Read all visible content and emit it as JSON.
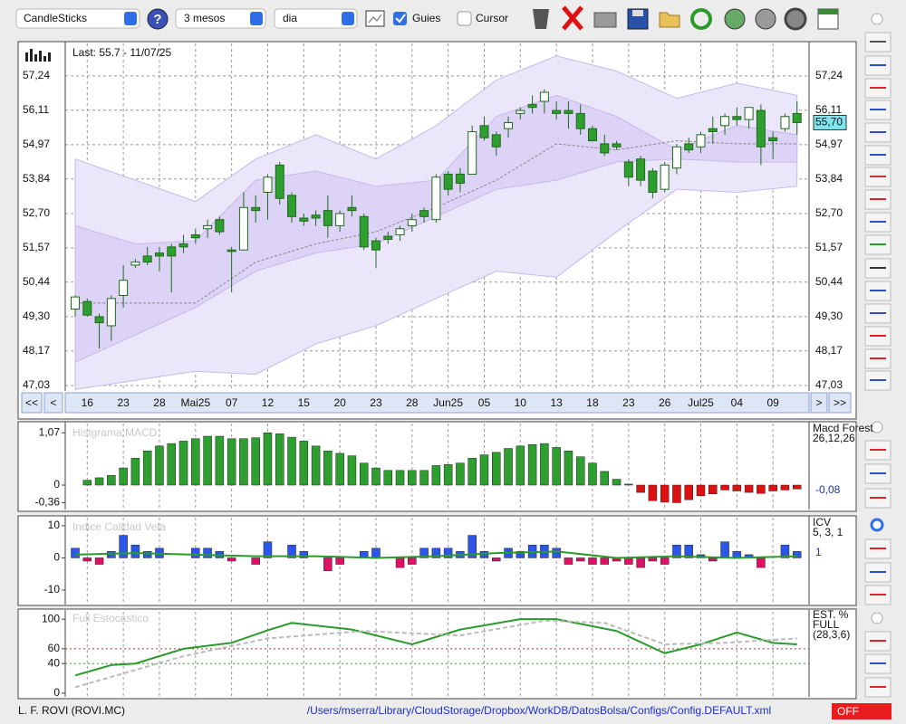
{
  "toolbar": {
    "chart_type": "CandleSticks",
    "period": "3 mesos",
    "interval": "dia",
    "guides": {
      "label": "Guies",
      "checked": true
    },
    "cursor": {
      "label": "Cursor",
      "checked": false
    }
  },
  "navigation": {
    "first": "<<",
    "prev": "<",
    "next": ">",
    "last": ">>"
  },
  "chart_data": [
    {
      "type": "candlestick",
      "title": "Last: 55.7 - 11/07/25",
      "up_color": "#ffffff",
      "down_color": "#2e9e2e",
      "ohlc": [
        [
          49.55,
          50.0,
          49.3,
          49.95
        ],
        [
          49.8,
          49.9,
          49.3,
          49.35
        ],
        [
          49.3,
          49.4,
          48.25,
          49.1
        ],
        [
          49.0,
          50.0,
          48.5,
          49.9
        ],
        [
          50.0,
          51.0,
          49.6,
          50.5
        ],
        [
          51.0,
          51.2,
          50.9,
          51.1
        ],
        [
          51.3,
          51.6,
          51.0,
          51.1
        ],
        [
          51.4,
          51.6,
          50.8,
          51.3
        ],
        [
          51.6,
          51.7,
          50.1,
          51.3
        ],
        [
          51.7,
          52.0,
          51.4,
          51.6
        ],
        [
          52.0,
          52.2,
          51.7,
          51.9
        ],
        [
          52.2,
          52.5,
          51.9,
          52.3
        ],
        [
          52.5,
          52.6,
          52.0,
          52.1
        ],
        [
          51.5,
          51.6,
          50.1,
          51.45
        ],
        [
          51.5,
          53.4,
          51.5,
          52.9
        ],
        [
          52.9,
          53.3,
          52.4,
          52.8
        ],
        [
          53.4,
          54.0,
          52.5,
          53.9
        ],
        [
          54.3,
          54.4,
          53.0,
          53.2
        ],
        [
          53.3,
          53.4,
          52.4,
          52.6
        ],
        [
          52.55,
          52.7,
          52.3,
          52.45
        ],
        [
          52.65,
          52.8,
          52.3,
          52.55
        ],
        [
          52.8,
          53.3,
          51.9,
          52.3
        ],
        [
          52.3,
          52.8,
          52.1,
          52.7
        ],
        [
          52.9,
          53.3,
          52.6,
          52.8
        ],
        [
          52.6,
          52.7,
          51.5,
          51.6
        ],
        [
          51.8,
          51.9,
          50.9,
          51.5
        ],
        [
          51.95,
          52.1,
          51.7,
          51.85
        ],
        [
          52.0,
          52.3,
          51.8,
          52.2
        ],
        [
          52.3,
          52.7,
          52.1,
          52.5
        ],
        [
          52.8,
          52.9,
          52.4,
          52.6
        ],
        [
          52.5,
          54.0,
          52.4,
          53.9
        ],
        [
          54.0,
          54.1,
          53.3,
          53.5
        ],
        [
          54.0,
          54.2,
          53.4,
          53.7
        ],
        [
          54.0,
          55.6,
          54.0,
          55.4
        ],
        [
          55.6,
          55.9,
          55.1,
          55.2
        ],
        [
          55.3,
          55.4,
          54.6,
          54.9
        ],
        [
          55.5,
          55.9,
          55.2,
          55.7
        ],
        [
          56.0,
          56.2,
          55.8,
          56.1
        ],
        [
          56.3,
          56.6,
          56.0,
          56.2
        ],
        [
          56.4,
          56.8,
          56.0,
          56.7
        ],
        [
          56.1,
          56.4,
          55.8,
          56.0
        ],
        [
          56.1,
          56.4,
          55.5,
          56.0
        ],
        [
          56.0,
          56.3,
          55.3,
          55.5
        ],
        [
          55.5,
          55.6,
          55.1,
          55.1
        ],
        [
          55.0,
          55.3,
          54.6,
          54.7
        ],
        [
          55.0,
          55.1,
          54.8,
          54.9
        ],
        [
          54.4,
          54.5,
          53.6,
          53.9
        ],
        [
          54.5,
          54.6,
          53.6,
          53.8
        ],
        [
          54.1,
          54.2,
          53.2,
          53.4
        ],
        [
          53.5,
          54.4,
          53.4,
          54.3
        ],
        [
          54.2,
          55.0,
          54.0,
          54.9
        ],
        [
          55.0,
          55.2,
          54.7,
          54.8
        ],
        [
          54.9,
          55.4,
          54.7,
          55.3
        ],
        [
          55.5,
          55.9,
          55.0,
          55.4
        ],
        [
          55.6,
          56.0,
          55.3,
          55.9
        ],
        [
          55.9,
          56.2,
          55.6,
          55.8
        ],
        [
          55.8,
          56.2,
          55.5,
          56.2
        ],
        [
          56.1,
          56.3,
          54.3,
          54.9
        ],
        [
          55.2,
          55.4,
          54.5,
          55.1
        ],
        [
          55.5,
          56.0,
          55.4,
          55.9
        ],
        [
          56.0,
          56.4,
          55.3,
          55.7
        ]
      ],
      "bands": {
        "x": [
          0,
          5,
          10,
          15,
          20,
          25,
          30,
          35,
          40,
          45,
          50,
          55,
          60
        ],
        "outer_upper": [
          54.5,
          53.8,
          53.1,
          54.5,
          55.3,
          54.5,
          55.6,
          57.1,
          57.9,
          57.4,
          56.5,
          57.0,
          56.6
        ],
        "outer_lower": [
          46.9,
          47.2,
          47.5,
          47.4,
          48.4,
          49.0,
          49.9,
          50.8,
          50.6,
          52.1,
          53.5,
          53.4,
          53.6
        ],
        "inner_upper": [
          52.3,
          51.7,
          51.8,
          53.8,
          54.1,
          53.6,
          53.8,
          55.9,
          56.6,
          55.9,
          54.8,
          55.6,
          55.3
        ],
        "inner_lower": [
          47.8,
          48.7,
          49.6,
          50.8,
          51.4,
          51.7,
          52.6,
          53.5,
          53.8,
          54.4,
          54.5,
          54.4,
          54.4
        ],
        "middle": [
          49.75,
          49.75,
          49.75,
          51.1,
          51.7,
          52.1,
          52.9,
          53.8,
          55.0,
          54.8,
          55.1,
          55.0,
          55.0
        ],
        "outer_color": "#ece6fa",
        "inner_color": "#ddd3f6",
        "middle_color": "#888888"
      },
      "last": {
        "value": 55.7,
        "label": "55,70"
      },
      "xlim": [
        -0.83,
        61
      ],
      "xticks": [
        {
          "value": 1,
          "label": "16"
        },
        {
          "value": 4,
          "label": "23"
        },
        {
          "value": 7,
          "label": "28"
        },
        {
          "value": 10,
          "label": "Mai25"
        },
        {
          "value": 13,
          "label": "07"
        },
        {
          "value": 16,
          "label": "12"
        },
        {
          "value": 19,
          "label": "15"
        },
        {
          "value": 22,
          "label": "20"
        },
        {
          "value": 25,
          "label": "23"
        },
        {
          "value": 28,
          "label": "28"
        },
        {
          "value": 31,
          "label": "Jun25"
        },
        {
          "value": 34,
          "label": "05"
        },
        {
          "value": 37,
          "label": "10"
        },
        {
          "value": 40,
          "label": "13"
        },
        {
          "value": 43,
          "label": "18"
        },
        {
          "value": 46,
          "label": "23"
        },
        {
          "value": 49,
          "label": "26"
        },
        {
          "value": 52,
          "label": "Jul25"
        },
        {
          "value": 55,
          "label": "04"
        },
        {
          "value": 58,
          "label": "09"
        }
      ],
      "ylim": [
        46.85,
        58.31
      ],
      "yticks": [
        {
          "value": 57.24,
          "label": "57,24"
        },
        {
          "value": 56.11,
          "label": "56,11"
        },
        {
          "value": 54.97,
          "label": "54,97"
        },
        {
          "value": 53.84,
          "label": "53,84"
        },
        {
          "value": 52.7,
          "label": "52,70"
        },
        {
          "value": 51.57,
          "label": "51,57"
        },
        {
          "value": 50.44,
          "label": "50,44"
        },
        {
          "value": 49.3,
          "label": "49,30"
        },
        {
          "value": 48.17,
          "label": "48,17"
        },
        {
          "value": 47.03,
          "label": "47,03"
        }
      ],
      "grid": true
    },
    {
      "type": "bar",
      "title": "Histgrama MACD",
      "legend": [
        "Macd Forest",
        "26,12,26"
      ],
      "positive_color": "#2e9e2e",
      "negative_color": "#dd1111",
      "values": [
        null,
        0.1,
        0.15,
        0.2,
        0.35,
        0.55,
        0.7,
        0.8,
        0.85,
        0.9,
        0.95,
        1.0,
        1.0,
        0.95,
        0.95,
        0.97,
        1.07,
        1.05,
        0.98,
        0.9,
        0.8,
        0.7,
        0.65,
        0.6,
        0.45,
        0.35,
        0.3,
        0.3,
        0.3,
        0.3,
        0.4,
        0.42,
        0.45,
        0.55,
        0.62,
        0.67,
        0.75,
        0.8,
        0.83,
        0.85,
        0.77,
        0.7,
        0.58,
        0.45,
        0.28,
        0.12,
        0.02,
        -0.15,
        -0.32,
        -0.35,
        -0.36,
        -0.3,
        -0.22,
        -0.18,
        -0.1,
        -0.12,
        -0.15,
        -0.17,
        -0.12,
        -0.1,
        -0.08
      ],
      "last": {
        "value": -0.08,
        "label": "-0,08"
      },
      "ylim": [
        -0.5,
        1.26
      ],
      "yticks": [
        {
          "value": 1.07,
          "label": "1,07"
        },
        0,
        {
          "value": -0.36,
          "label": "-0,36"
        }
      ]
    },
    {
      "type": "bar",
      "title": "Indice Calidad Vela",
      "legend": [
        "ICV",
        "5, 3, 1"
      ],
      "positive_color": "#2a57e8",
      "negative_color": "#dd1166",
      "values": [
        3,
        -1,
        -2,
        2,
        7,
        4,
        2,
        3,
        0,
        0,
        3,
        3,
        2,
        -1,
        0,
        -2,
        5,
        0,
        4,
        2,
        0,
        -4,
        -2,
        0,
        2,
        3,
        0,
        -3,
        -2,
        3,
        3,
        3,
        2,
        7,
        2,
        -1,
        3,
        2,
        4,
        4,
        3,
        -2,
        -1,
        -2,
        -2,
        -1,
        -2,
        -3,
        -1,
        -2,
        4,
        4,
        1,
        -1,
        5,
        2,
        1,
        -3,
        0,
        4,
        2
      ],
      "line": {
        "color": "#2a9a2a",
        "x": [
          0,
          5,
          10,
          15,
          20,
          25,
          30,
          35,
          40,
          45,
          50,
          55,
          60
        ],
        "values": [
          1,
          1.5,
          1,
          0.5,
          0.5,
          0,
          0.5,
          1.5,
          2,
          0,
          0.5,
          0,
          0.5
        ]
      },
      "last": 1,
      "ylim": [
        -14.5,
        12.5
      ],
      "yticks": [
        10,
        0,
        -10
      ]
    },
    {
      "type": "line",
      "title": "Full Estocastico",
      "legend": [
        "EST. %",
        "FULL",
        "(28,3,6)"
      ],
      "series": [
        {
          "color": "#2a9a2a",
          "x": [
            0,
            3,
            5,
            9,
            13,
            16,
            18,
            23,
            28,
            32,
            37,
            40,
            45,
            49,
            52,
            55,
            58,
            60
          ],
          "values": [
            24,
            38,
            40,
            60,
            68,
            85,
            95,
            86,
            66,
            86,
            100,
            100,
            84,
            54,
            66,
            82,
            68,
            66
          ]
        },
        {
          "color": "#bbbbbb",
          "dashed": true,
          "x": [
            0,
            9,
            16,
            24,
            32,
            39,
            44,
            49,
            54,
            60
          ],
          "values": [
            8,
            50,
            74,
            84,
            78,
            98,
            95,
            66,
            68,
            74
          ]
        }
      ],
      "guides": [
        {
          "value": 60,
          "color": "#bb3333"
        },
        {
          "value": 40,
          "color": "#339933"
        }
      ],
      "ylim": [
        -5,
        110
      ],
      "yticks": [
        100,
        60,
        40,
        0
      ]
    }
  ],
  "status": {
    "instrument": "L. F. ROVI (ROVI.MC)",
    "config_path": "/Users/mserra/Library/CloudStorage/Dropbox/WorkDB/DatosBolsa/Configs/Config.DEFAULT.xml",
    "mode": "OFF"
  }
}
